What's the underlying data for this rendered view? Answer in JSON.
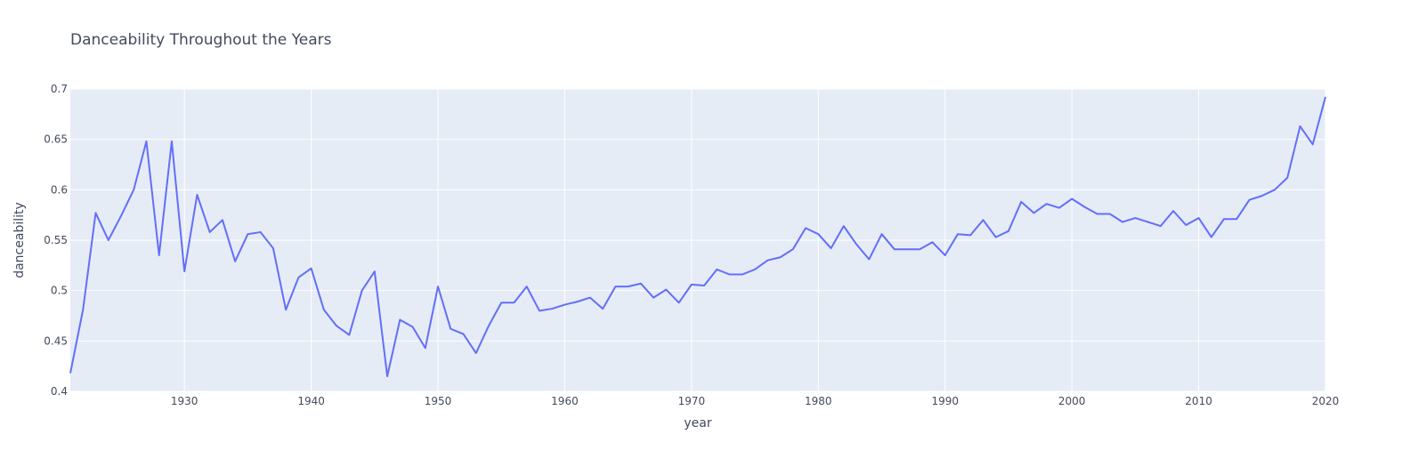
{
  "chart_data": {
    "type": "line",
    "title": "Danceability Throughout the Years",
    "xlabel": "year",
    "ylabel": "danceability",
    "xlim": [
      1921,
      2020
    ],
    "ylim": [
      0.4,
      0.7
    ],
    "grid": true,
    "x_ticks": [
      {
        "value": 1930,
        "label": "1930"
      },
      {
        "value": 1940,
        "label": "1940"
      },
      {
        "value": 1950,
        "label": "1950"
      },
      {
        "value": 1960,
        "label": "1960"
      },
      {
        "value": 1970,
        "label": "1970"
      },
      {
        "value": 1980,
        "label": "1980"
      },
      {
        "value": 1990,
        "label": "1990"
      },
      {
        "value": 2000,
        "label": "2000"
      },
      {
        "value": 2010,
        "label": "2010"
      },
      {
        "value": 2020,
        "label": "2020"
      }
    ],
    "y_ticks": [
      {
        "value": 0.4,
        "label": "0.4"
      },
      {
        "value": 0.45,
        "label": "0.45"
      },
      {
        "value": 0.5,
        "label": "0.5"
      },
      {
        "value": 0.55,
        "label": "0.55"
      },
      {
        "value": 0.6,
        "label": "0.6"
      },
      {
        "value": 0.65,
        "label": "0.65"
      },
      {
        "value": 0.7,
        "label": "0.7"
      }
    ],
    "series": [
      {
        "color": "#636efa",
        "x": [
          1921,
          1922,
          1923,
          1924,
          1925,
          1926,
          1927,
          1928,
          1929,
          1930,
          1931,
          1932,
          1933,
          1934,
          1935,
          1936,
          1937,
          1938,
          1939,
          1940,
          1941,
          1942,
          1943,
          1944,
          1945,
          1946,
          1947,
          1948,
          1949,
          1950,
          1951,
          1952,
          1953,
          1954,
          1955,
          1956,
          1957,
          1958,
          1959,
          1960,
          1961,
          1962,
          1963,
          1964,
          1965,
          1966,
          1967,
          1968,
          1969,
          1970,
          1971,
          1972,
          1973,
          1974,
          1975,
          1976,
          1977,
          1978,
          1979,
          1980,
          1981,
          1982,
          1983,
          1984,
          1985,
          1986,
          1987,
          1988,
          1989,
          1990,
          1991,
          1992,
          1993,
          1994,
          1995,
          1996,
          1997,
          1998,
          1999,
          2000,
          2001,
          2002,
          2003,
          2004,
          2005,
          2006,
          2007,
          2008,
          2009,
          2010,
          2011,
          2012,
          2013,
          2014,
          2015,
          2016,
          2017,
          2018,
          2019,
          2020
        ],
        "y": [
          0.418,
          0.481,
          0.577,
          0.55,
          0.574,
          0.6,
          0.648,
          0.535,
          0.648,
          0.519,
          0.595,
          0.558,
          0.57,
          0.529,
          0.556,
          0.558,
          0.542,
          0.481,
          0.513,
          0.522,
          0.481,
          0.465,
          0.456,
          0.5,
          0.519,
          0.415,
          0.471,
          0.464,
          0.443,
          0.504,
          0.462,
          0.457,
          0.438,
          0.465,
          0.488,
          0.488,
          0.504,
          0.48,
          0.482,
          0.486,
          0.489,
          0.493,
          0.482,
          0.504,
          0.504,
          0.507,
          0.493,
          0.501,
          0.488,
          0.506,
          0.505,
          0.521,
          0.516,
          0.516,
          0.521,
          0.53,
          0.533,
          0.541,
          0.562,
          0.556,
          0.542,
          0.564,
          0.546,
          0.531,
          0.556,
          0.541,
          0.541,
          0.541,
          0.548,
          0.535,
          0.556,
          0.555,
          0.57,
          0.553,
          0.559,
          0.588,
          0.577,
          0.586,
          0.582,
          0.591,
          0.583,
          0.576,
          0.576,
          0.568,
          0.572,
          0.568,
          0.564,
          0.579,
          0.565,
          0.572,
          0.553,
          0.571,
          0.571,
          0.59,
          0.594,
          0.6,
          0.612,
          0.663,
          0.645,
          0.692
        ]
      }
    ]
  }
}
